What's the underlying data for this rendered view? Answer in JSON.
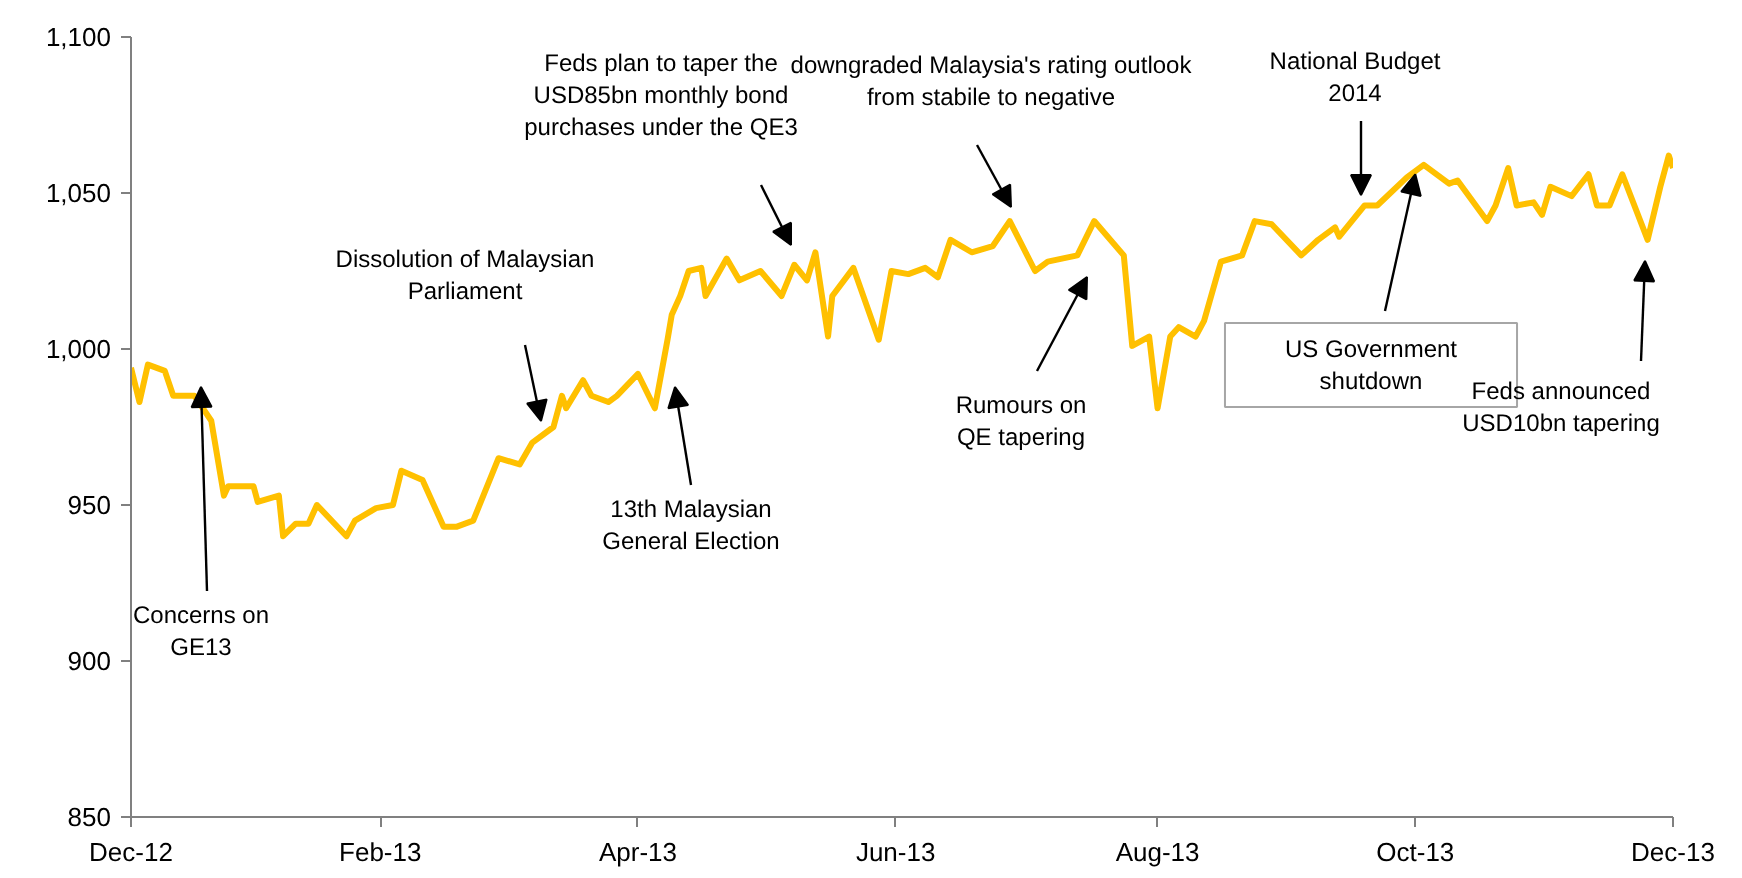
{
  "chart_data": {
    "type": "line",
    "x": [
      "2012-12-31",
      "2013-01-02",
      "2013-01-04",
      "2013-01-08",
      "2013-01-10",
      "2013-01-15",
      "2013-01-19",
      "2013-01-22",
      "2013-01-23",
      "2013-01-29",
      "2013-01-30",
      "2013-02-04",
      "2013-02-05",
      "2013-02-08",
      "2013-02-11",
      "2013-02-13",
      "2013-02-20",
      "2013-02-22",
      "2013-02-27",
      "2013-03-03",
      "2013-03-05",
      "2013-03-10",
      "2013-03-15",
      "2013-03-18",
      "2013-03-22",
      "2013-03-28",
      "2013-04-02",
      "2013-04-05",
      "2013-04-10",
      "2013-04-12",
      "2013-04-13",
      "2013-04-17",
      "2013-04-19",
      "2013-04-23",
      "2013-04-25",
      "2013-04-30",
      "2013-05-04",
      "2013-05-07",
      "2013-05-08",
      "2013-05-10",
      "2013-05-12",
      "2013-05-15",
      "2013-05-16",
      "2013-05-21",
      "2013-05-24",
      "2013-05-29",
      "2013-06-03",
      "2013-06-06",
      "2013-06-09",
      "2013-06-11",
      "2013-06-14",
      "2013-06-15",
      "2013-06-20",
      "2013-06-26",
      "2013-06-29",
      "2013-07-03",
      "2013-07-07",
      "2013-07-10",
      "2013-07-13",
      "2013-07-18",
      "2013-07-23",
      "2013-07-27",
      "2013-08-02",
      "2013-08-05",
      "2013-08-12",
      "2013-08-16",
      "2013-08-23",
      "2013-08-25",
      "2013-08-29",
      "2013-08-31",
      "2013-09-03",
      "2013-09-05",
      "2013-09-09",
      "2013-09-11",
      "2013-09-15",
      "2013-09-20",
      "2013-09-23",
      "2013-09-27",
      "2013-10-04",
      "2013-10-08",
      "2013-10-12",
      "2013-10-13",
      "2013-10-19",
      "2013-10-22",
      "2013-10-29",
      "2013-11-02",
      "2013-11-08",
      "2013-11-10",
      "2013-11-17",
      "2013-11-19",
      "2013-11-22",
      "2013-11-24",
      "2013-11-28",
      "2013-11-30",
      "2013-12-02",
      "2013-12-07",
      "2013-12-11",
      "2013-12-13",
      "2013-12-16",
      "2013-12-19",
      "2013-12-25",
      "2013-12-28",
      "2013-12-30",
      "2013-12-31"
    ],
    "series": [
      {
        "color": "#ffc000",
        "values": [
          994,
          983,
          995,
          993,
          985,
          985,
          977,
          953,
          956,
          956,
          951,
          953,
          940,
          944,
          944,
          950,
          940,
          945,
          949,
          950,
          961,
          958,
          943,
          943,
          945,
          965,
          963,
          970,
          975,
          985,
          981,
          990,
          985,
          983,
          985,
          992,
          981,
          1003,
          1011,
          1017,
          1025,
          1026,
          1017,
          1029,
          1022,
          1025,
          1017,
          1027,
          1022,
          1031,
          1004,
          1017,
          1026,
          1003,
          1025,
          1024,
          1026,
          1023,
          1035,
          1031,
          1033,
          1041,
          1025,
          1028,
          1030,
          1041,
          1030,
          1001,
          1004,
          981,
          1004,
          1007,
          1004,
          1009,
          1028,
          1030,
          1041,
          1040,
          1030,
          1035,
          1039,
          1036,
          1046,
          1046,
          1055,
          1059,
          1053,
          1054,
          1041,
          1046,
          1058,
          1046,
          1047,
          1043,
          1052,
          1049,
          1056,
          1046,
          1046,
          1056,
          1035,
          1052,
          1062,
          1058
        ]
      }
    ],
    "xlim": [
      "2012-12-31",
      "2013-12-31"
    ],
    "xticks": [
      {
        "value": "2012-12-31",
        "label": "Dec-12"
      },
      {
        "value": "2013-02-28",
        "label": "Feb-13"
      },
      {
        "value": "2013-04-30",
        "label": "Apr-13"
      },
      {
        "value": "2013-06-30",
        "label": "Jun-13"
      },
      {
        "value": "2013-08-31",
        "label": "Aug-13"
      },
      {
        "value": "2013-10-31",
        "label": "Oct-13"
      },
      {
        "value": "2013-12-31",
        "label": "Dec-13"
      }
    ],
    "ylim": [
      850,
      1100
    ],
    "yticks": [
      {
        "value": 850,
        "label": "850"
      },
      {
        "value": 900,
        "label": "900"
      },
      {
        "value": 950,
        "label": "950"
      },
      {
        "value": 1000,
        "label": "1,000"
      },
      {
        "value": 1050,
        "label": "1,050"
      },
      {
        "value": 1100,
        "label": "1,100"
      }
    ],
    "grid": false,
    "marker": "none",
    "line_style": "solid",
    "annotations": [
      "Concerns on\nGE13",
      "Dissolution of Malaysian\nParliament",
      "13th Malaysian\nGeneral Election",
      "Feds plan to taper the\nUSD85bn monthly bond\npurchases under the QE3",
      "downgraded Malaysia's rating outlook\nfrom stabile to negative",
      "Rumours on\nQE tapering",
      "National Budget\n2014",
      {
        "text": "US Government\nshutdown",
        "x": "2013-10-31",
        "y": 1056
      },
      "Feds announced\nUSD10bn tapering"
    ]
  }
}
